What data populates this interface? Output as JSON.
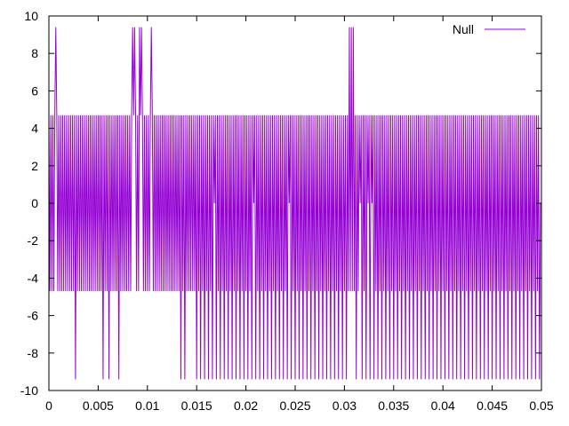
{
  "chart_data": {
    "type": "line",
    "title": "",
    "xlabel": "",
    "ylabel": "",
    "xlim": [
      0,
      0.05
    ],
    "ylim": [
      -10,
      10
    ],
    "x_ticks": [
      0,
      0.005,
      0.01,
      0.015,
      0.02,
      0.025,
      0.03,
      0.035,
      0.04,
      0.045,
      0.05
    ],
    "x_tick_labels": [
      "0",
      "0.005",
      "0.01",
      "0.015",
      "0.02",
      "0.025",
      "0.03",
      "0.035",
      "0.04",
      "0.045",
      "0.05"
    ],
    "y_ticks": [
      -10,
      -8,
      -6,
      -4,
      -2,
      0,
      2,
      4,
      6,
      8,
      10
    ],
    "y_tick_labels": [
      "-10",
      "-8",
      "-6",
      "-4",
      "-2",
      "0",
      "2",
      "4",
      "6",
      "8",
      "10"
    ],
    "grid": false,
    "legend": {
      "position": "top-right"
    },
    "series": [
      {
        "name": "Null",
        "color": "#9400d3",
        "levels": [
          -9.4,
          -4.7,
          0,
          4.7,
          9.4
        ],
        "x_step": 0.0001,
        "values": [
          4.7,
          -4.7,
          4.7,
          -4.7,
          4.7,
          -4.7,
          4.7,
          9.4,
          4.7,
          -4.7,
          4.7,
          -4.7,
          4.7,
          -4.7,
          4.7,
          -4.7,
          4.7,
          -4.7,
          4.7,
          -4.7,
          4.7,
          -4.7,
          4.7,
          -4.7,
          4.7,
          -4.7,
          4.7,
          -9.4,
          4.7,
          -4.7,
          4.7,
          -4.7,
          4.7,
          -4.7,
          4.7,
          -4.7,
          4.7,
          -4.7,
          4.7,
          -4.7,
          4.7,
          -4.7,
          4.7,
          -4.7,
          4.7,
          -4.7,
          4.7,
          -4.7,
          4.7,
          -4.7,
          4.7,
          -4.7,
          4.7,
          -4.7,
          4.7,
          -9.4,
          4.7,
          -4.7,
          4.7,
          -4.7,
          4.7,
          -9.4,
          4.7,
          -4.7,
          4.7,
          -4.7,
          4.7,
          -4.7,
          4.7,
          -4.7,
          4.7,
          -9.4,
          4.7,
          -4.7,
          4.7,
          -4.7,
          4.7,
          -4.7,
          4.7,
          -4.7,
          4.7,
          -4.7,
          4.7,
          -4.7,
          4.7,
          9.4,
          4.7,
          9.4,
          4.7,
          -4.7,
          4.7,
          -4.7,
          9.4,
          4.7,
          9.4,
          4.7,
          -4.7,
          4.7,
          -4.7,
          4.7,
          -4.7,
          4.7,
          -4.7,
          4.7,
          9.4,
          4.7,
          -4.7,
          4.7,
          -4.7,
          4.7,
          -4.7,
          4.7,
          -4.7,
          4.7,
          -4.7,
          4.7,
          -4.7,
          4.7,
          -4.7,
          4.7,
          -4.7,
          4.7,
          -4.7,
          4.7,
          -4.7,
          4.7,
          -4.7,
          4.7,
          -4.7,
          4.7,
          -4.7,
          4.7,
          -4.7,
          4.7,
          -9.4,
          4.7,
          -4.7,
          4.7,
          -9.4,
          4.7,
          -4.7,
          4.7,
          -4.7,
          4.7,
          -4.7,
          4.7,
          -4.7,
          4.7,
          -4.7,
          4.7,
          -9.4,
          4.7,
          -4.7,
          4.7,
          -9.4,
          4.7,
          -4.7,
          4.7,
          -9.4,
          4.7,
          -4.7,
          4.7,
          -9.4,
          4.7,
          -4.7,
          4.7,
          -9.4,
          4.7,
          0,
          4.7,
          -9.4,
          4.7,
          -4.7,
          4.7,
          -9.4,
          4.7,
          -4.7,
          4.7,
          -9.4,
          4.7,
          -4.7,
          4.7,
          -9.4,
          4.7,
          -4.7,
          4.7,
          -9.4,
          4.7,
          -4.7,
          4.7,
          -9.4,
          4.7,
          -4.7,
          4.7,
          -9.4,
          4.7,
          -4.7,
          4.7,
          -9.4,
          4.7,
          -4.7,
          4.7,
          -9.4,
          4.7,
          -4.7,
          4.7,
          -9.4,
          4.7,
          0,
          4.7,
          -9.4,
          4.7,
          -4.7,
          4.7,
          -9.4,
          4.7,
          -4.7,
          4.7,
          -9.4,
          4.7,
          -4.7,
          4.7,
          -9.4,
          4.7,
          -4.7,
          4.7,
          -9.4,
          4.7,
          -4.7,
          4.7,
          -9.4,
          4.7,
          -4.7,
          4.7,
          -9.4,
          4.7,
          -4.7,
          4.7,
          -9.4,
          4.7,
          -4.7,
          4.7,
          -9.4,
          4.7,
          0,
          4.7,
          -9.4,
          4.7,
          -4.7,
          4.7,
          -9.4,
          4.7,
          -4.7,
          4.7,
          -9.4,
          4.7,
          -4.7,
          4.7,
          -9.4,
          4.7,
          -4.7,
          4.7,
          -9.4,
          4.7,
          -4.7,
          4.7,
          -9.4,
          4.7,
          -4.7,
          4.7,
          -9.4,
          4.7,
          -4.7,
          4.7,
          -9.4,
          4.7,
          -4.7,
          4.7,
          -9.4,
          4.7,
          -4.7,
          4.7,
          -9.4,
          4.7,
          -4.7,
          4.7,
          -9.4,
          4.7,
          -4.7,
          4.7,
          -9.4,
          4.7,
          -4.7,
          4.7,
          -9.4,
          4.7,
          -4.7,
          4.7,
          -9.4,
          4.7,
          -4.7,
          4.7,
          -9.4,
          4.7,
          -4.7,
          9.4,
          -4.7,
          9.4,
          -4.7,
          9.4,
          -4.7,
          4.7,
          -9.4,
          4.7,
          -4.7,
          4.7,
          0,
          4.7,
          -9.4,
          4.7,
          -4.7,
          4.7,
          -9.4,
          4.7,
          0,
          4.7,
          -9.4,
          4.7,
          0,
          4.7,
          -9.4,
          4.7,
          -4.7,
          4.7,
          -9.4,
          4.7,
          -4.7,
          4.7,
          -9.4,
          4.7,
          -4.7,
          4.7,
          -9.4,
          4.7,
          -4.7,
          4.7,
          -9.4,
          4.7,
          -4.7,
          4.7,
          -9.4,
          4.7,
          -4.7,
          4.7,
          -9.4,
          4.7,
          -4.7,
          4.7,
          -9.4,
          4.7,
          -4.7,
          4.7,
          -9.4,
          4.7,
          -4.7,
          4.7,
          -9.4,
          4.7,
          -4.7,
          4.7,
          -9.4,
          4.7,
          -4.7,
          4.7,
          -9.4,
          4.7,
          -4.7,
          4.7,
          -9.4,
          4.7,
          -4.7,
          4.7,
          -9.4,
          4.7,
          -4.7,
          4.7,
          -9.4,
          4.7,
          -4.7,
          4.7,
          -9.4,
          4.7,
          -4.7,
          4.7,
          -9.4,
          4.7,
          -4.7,
          4.7,
          -9.4,
          4.7,
          -4.7,
          4.7,
          -9.4,
          4.7,
          -4.7,
          4.7,
          -9.4,
          4.7,
          -4.7,
          4.7,
          -9.4,
          4.7,
          -4.7,
          4.7,
          -9.4,
          4.7,
          -4.7,
          4.7,
          -9.4,
          4.7,
          -4.7,
          4.7,
          -9.4,
          4.7,
          -4.7,
          4.7,
          -9.4,
          4.7,
          -4.7,
          4.7,
          -9.4,
          4.7,
          -4.7,
          4.7,
          -9.4,
          4.7,
          -4.7,
          4.7,
          -9.4,
          4.7,
          -4.7,
          4.7,
          -9.4,
          4.7,
          -4.7,
          4.7,
          -9.4,
          4.7,
          -4.7,
          4.7,
          -9.4,
          4.7,
          -4.7,
          4.7,
          -9.4,
          4.7,
          -4.7,
          4.7,
          -9.4,
          4.7,
          -4.7,
          4.7,
          -9.4,
          4.7,
          -4.7,
          4.7,
          -9.4,
          4.7,
          -4.7,
          4.7,
          -9.4,
          4.7,
          -4.7,
          4.7,
          -9.4,
          4.7,
          -4.7,
          4.7,
          -9.4,
          4.7,
          -4.7,
          4.7,
          -9.4,
          4.7,
          -4.7,
          4.7,
          -9.4,
          4.7,
          -4.7,
          4.7,
          -9.4,
          4.7,
          -4.7,
          4.7,
          -9.4,
          4.7,
          -4.7,
          4.7,
          -9.4,
          0,
          0
        ]
      }
    ]
  }
}
